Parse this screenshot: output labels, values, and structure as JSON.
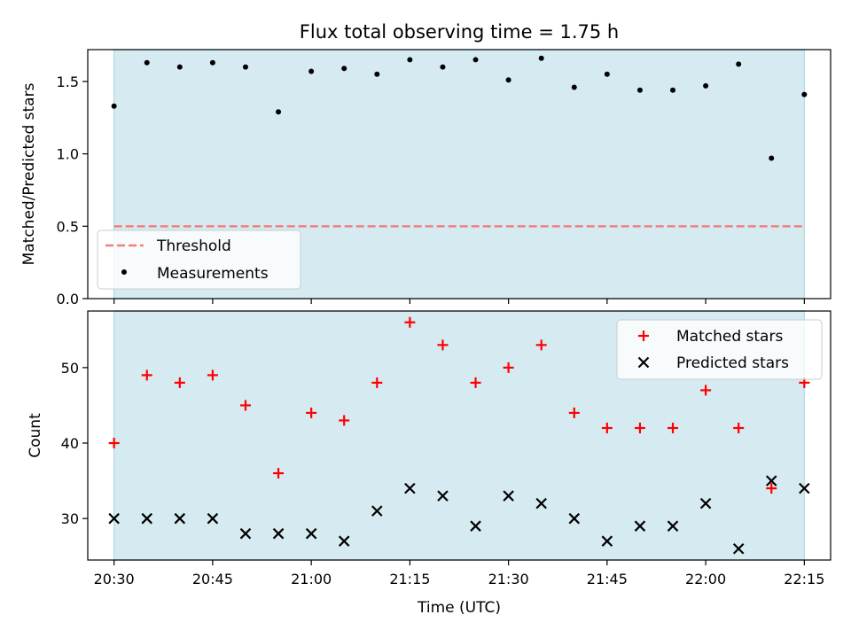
{
  "title": "Flux total observing time = 1.75 h",
  "colors": {
    "band": "#d5ebf1",
    "band_edge": "#b8dde6",
    "threshold": "#f08080",
    "matched": "#ff0000",
    "predicted": "#000000",
    "measurement": "#000000"
  },
  "chart_data": [
    {
      "type": "scatter",
      "panel": "top",
      "ylabel": "Matched/Predicted stars",
      "xlabel": "",
      "xlim": [
        "20:26",
        "22:19"
      ],
      "ylim": [
        0,
        1.72
      ],
      "yticks": [
        "0.0",
        "0.5",
        "1.0",
        "1.5"
      ],
      "ytick_values": [
        0,
        0.5,
        1.0,
        1.5
      ],
      "shaded_band": [
        "20:30",
        "22:15"
      ],
      "threshold": {
        "name": "Threshold",
        "value": 0.5,
        "x": [
          "20:30",
          "22:15"
        ],
        "style": "dashed"
      },
      "series": [
        {
          "name": "Measurements",
          "x": [
            "20:30",
            "20:35",
            "20:40",
            "20:45",
            "20:50",
            "20:55",
            "21:00",
            "21:05",
            "21:10",
            "21:15",
            "21:20",
            "21:25",
            "21:30",
            "21:35",
            "21:40",
            "21:45",
            "21:50",
            "21:55",
            "22:00",
            "22:05",
            "22:10",
            "22:15"
          ],
          "values": [
            1.33,
            1.63,
            1.6,
            1.63,
            1.6,
            1.29,
            1.57,
            1.59,
            1.55,
            1.65,
            1.6,
            1.65,
            1.51,
            1.66,
            1.46,
            1.55,
            1.44,
            1.44,
            1.47,
            1.62,
            0.97,
            1.41
          ]
        }
      ],
      "legend": {
        "position": "lower-left",
        "entries": [
          "Threshold",
          "Measurements"
        ]
      },
      "grid": false
    },
    {
      "type": "scatter",
      "panel": "bottom",
      "ylabel": "Count",
      "xlabel": "Time (UTC)",
      "xlim": [
        "20:26",
        "22:19"
      ],
      "ylim": [
        24.5,
        57.5
      ],
      "yticks": [
        "30",
        "40",
        "50"
      ],
      "ytick_values": [
        30,
        40,
        50
      ],
      "xticks": [
        "20:30",
        "20:45",
        "21:00",
        "21:15",
        "21:30",
        "21:45",
        "22:00",
        "22:15"
      ],
      "shaded_band": [
        "20:30",
        "22:15"
      ],
      "series": [
        {
          "name": "Matched stars",
          "marker": "+",
          "x": [
            "20:30",
            "20:35",
            "20:40",
            "20:45",
            "20:50",
            "20:55",
            "21:00",
            "21:05",
            "21:10",
            "21:15",
            "21:20",
            "21:25",
            "21:30",
            "21:35",
            "21:40",
            "21:45",
            "21:50",
            "21:55",
            "22:00",
            "22:05",
            "22:10",
            "22:15"
          ],
          "values": [
            40,
            49,
            48,
            49,
            45,
            36,
            44,
            43,
            48,
            56,
            53,
            48,
            50,
            53,
            44,
            42,
            42,
            42,
            47,
            42,
            34,
            48
          ]
        },
        {
          "name": "Predicted stars",
          "marker": "x",
          "x": [
            "20:30",
            "20:35",
            "20:40",
            "20:45",
            "20:50",
            "20:55",
            "21:00",
            "21:05",
            "21:10",
            "21:15",
            "21:20",
            "21:25",
            "21:30",
            "21:35",
            "21:40",
            "21:45",
            "21:50",
            "21:55",
            "22:00",
            "22:05",
            "22:10",
            "22:15"
          ],
          "values": [
            30,
            30,
            30,
            30,
            28,
            28,
            28,
            27,
            31,
            34,
            33,
            29,
            33,
            32,
            30,
            27,
            29,
            29,
            32,
            26,
            35,
            34
          ]
        }
      ],
      "legend": {
        "position": "top-right",
        "entries": [
          "Matched stars",
          "Predicted stars"
        ]
      },
      "grid": false
    }
  ]
}
